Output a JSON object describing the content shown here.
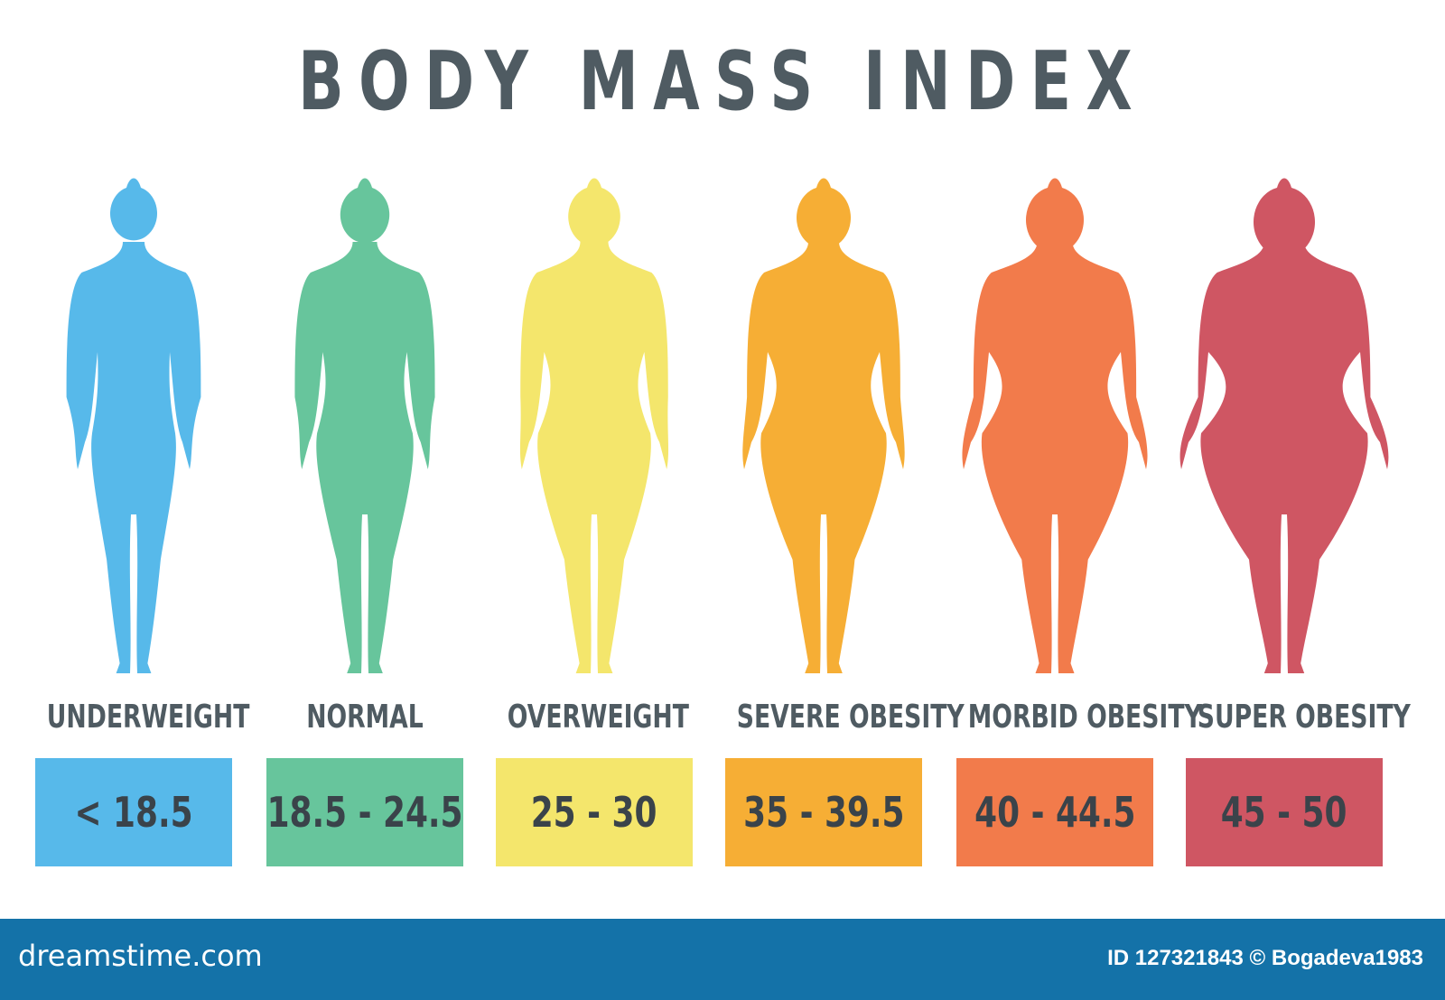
{
  "title": "BODY MASS INDEX",
  "categories": [
    {
      "label": "UNDERWEIGHT",
      "range": "< 18.5",
      "color": "#57b9ea",
      "body_width": 1.0
    },
    {
      "label": "NORMAL",
      "range": "18.5 - 24.5",
      "color": "#67c59c",
      "body_width": 1.15
    },
    {
      "label": "OVERWEIGHT",
      "range": "25 - 30",
      "color": "#f4e66c",
      "body_width": 1.35
    },
    {
      "label": "SEVERE OBESITY",
      "range": "35 - 39.5",
      "color": "#f6ae35",
      "body_width": 1.5
    },
    {
      "label": "MORBID OBESITY",
      "range": "40 - 44.5",
      "color": "#f27b4b",
      "body_width": 1.75
    },
    {
      "label": "SUPER OBESITY",
      "range": "45 - 50",
      "color": "#cf5663",
      "body_width": 2.0
    }
  ],
  "footer": {
    "logo": "dreamstime.com",
    "credit": "ID 127321843 © Bogadeva1983"
  }
}
